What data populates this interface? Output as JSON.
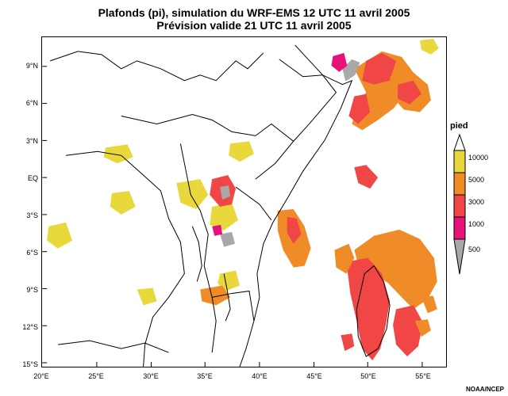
{
  "title": {
    "line1": "Plafonds (pi), simulation du WRF-EMS 12 UTC 11 avril 2005",
    "line2": "Prévision valide 21 UTC 11 avril 2005"
  },
  "axes": {
    "lat_labels": [
      "9°N",
      "6°N",
      "3°N",
      "EQ",
      "3°S",
      "6°S",
      "9°S",
      "12°S",
      "15°S"
    ],
    "lon_labels": [
      "20°E",
      "25°E",
      "30°E",
      "35°E",
      "40°E",
      "45°E",
      "50°E",
      "55°E"
    ]
  },
  "legend": {
    "title": "pied",
    "entries": [
      {
        "label": "10000",
        "color": "#e8d83c"
      },
      {
        "label": "5000",
        "color": "#f08c28"
      },
      {
        "label": "3000",
        "color": "#f04646"
      },
      {
        "label": "1000",
        "color": "#e6127a"
      },
      {
        "label": "500",
        "color": "#a8a8a8"
      }
    ]
  },
  "credit": "NOAA/NCEP"
}
